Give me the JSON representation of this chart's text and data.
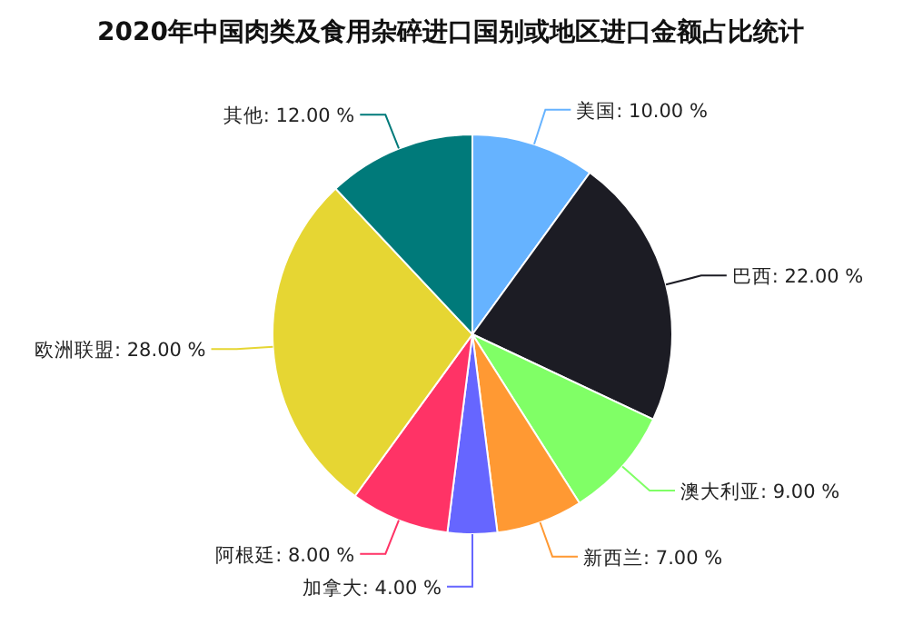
{
  "chart_data": {
    "type": "pie",
    "title": "2020年中国肉类及食用杂碎进口国别或地区进口金额占比统计",
    "categories": [
      "美国",
      "巴西",
      "澳大利亚",
      "新西兰",
      "加拿大",
      "阿根廷",
      "欧洲联盟",
      "其他"
    ],
    "values": [
      10,
      22,
      9,
      7,
      4,
      8,
      28,
      12
    ],
    "value_labels": [
      "10.00 %",
      "22.00 %",
      "9.00 %",
      "7.00 %",
      "4.00 %",
      "8.00 %",
      "28.00 %",
      "12.00 %"
    ],
    "colors": [
      "#66b3ff",
      "#1c1c24",
      "#80ff66",
      "#ff9933",
      "#6666ff",
      "#ff3366",
      "#e6d633",
      "#007a7a"
    ]
  }
}
